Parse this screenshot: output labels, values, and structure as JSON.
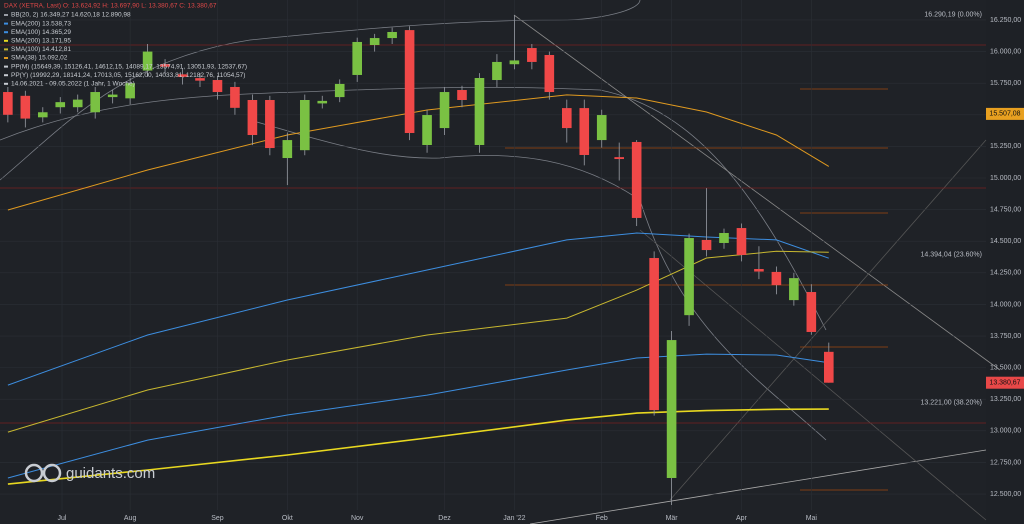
{
  "chart_data": {
    "type": "candlestick",
    "title": "DAX (XETRA, Last)  O: 13.624,92  H: 13.697,90  L: 13.380,67  C: 13.380,67",
    "legend_lines": [
      {
        "text": "BB(20, 2)  16.349,27  14.620,18  12.890,98",
        "color": "#9a9ea6"
      },
      {
        "text": "EMA(200)  13.538,73",
        "color": "#3d8ee0"
      },
      {
        "text": "EMA(100)  14.365,29",
        "color": "#3d8ee0"
      },
      {
        "text": "SMA(200)  13.171,95",
        "color": "#e8d820"
      },
      {
        "text": "SMA(100)  14.412,81",
        "color": "#c8b830"
      },
      {
        "text": "SMA(38)  15.092,02",
        "color": "#e09a20"
      },
      {
        "text": "PP(M)  (15649,39, 15126,41, 14612,15, 14089,17, 13574,91, 13051,93, 12537,67)",
        "color": "#c8ccd2"
      },
      {
        "text": "PP(Y)  (19992,29, 18141,24, 17013,05, 15162,00, 14033,81, 12182,76, 11054,57)",
        "color": "#c8ccd2"
      },
      {
        "text": "14.06.2021 - 09.05.2022  (1 Jahr, 1 Woche)",
        "color": "#c8ccd2"
      }
    ],
    "open": [
      15680,
      15650,
      15480,
      15560,
      15560,
      15520,
      15640,
      15630,
      15850,
      15900,
      15820,
      15790,
      15775,
      15720,
      15617,
      15617,
      15158,
      15220,
      15590,
      15640,
      15815,
      16052,
      16107,
      16170,
      15261,
      15395,
      15696,
      15261,
      15775,
      15900,
      16028,
      15973,
      15553,
      15553,
      15300,
      15165,
      15285,
      14367,
      12627,
      13915,
      14510,
      14486,
      14604,
      14280,
      14257,
      14034,
      14098,
      13624.92
    ],
    "high": [
      15720,
      15690,
      15560,
      15640,
      15660,
      15720,
      15700,
      15790,
      16060,
      15940,
      15870,
      15830,
      15810,
      15760,
      15660,
      15650,
      15360,
      15660,
      15650,
      15780,
      16110,
      16140,
      16190,
      16200,
      15540,
      15720,
      15730,
      15830,
      15980,
      16290,
      16060,
      16000,
      15620,
      15620,
      15540,
      15280,
      15300,
      14420,
      13790,
      14560,
      14920,
      14600,
      14640,
      14460,
      14300,
      14250,
      14160,
      13697.9
    ],
    "low": [
      15440,
      15400,
      15440,
      15510,
      15520,
      15470,
      15590,
      15580,
      15800,
      15820,
      15740,
      15720,
      15620,
      15500,
      15260,
      15180,
      14944,
      15180,
      15550,
      15600,
      15760,
      16000,
      16060,
      15300,
      15200,
      15340,
      15560,
      15200,
      15720,
      15860,
      15860,
      15620,
      15280,
      15100,
      15240,
      14980,
      14620,
      13120,
      12413,
      13830,
      14380,
      14440,
      14340,
      14200,
      14080,
      13990,
      13760,
      13380.67
    ],
    "close": [
      15500,
      15470,
      15520,
      15600,
      15620,
      15680,
      15660,
      15750,
      16000,
      15880,
      15800,
      15770,
      15680,
      15555,
      15340,
      15237,
      15300,
      15617,
      15610,
      15744,
      16076,
      16107,
      16155,
      15356,
      15498,
      15680,
      15617,
      15791,
      15918,
      15930,
      15918,
      15680,
      15395,
      15182,
      15498,
      15150,
      14684,
      13164,
      13718,
      14525,
      14430,
      14565,
      14391,
      14260,
      14153,
      14208,
      13782,
      13380.67
    ],
    "up_color": "#7ac143",
    "down_color": "#f04848",
    "lines": [
      {
        "color": "#3d8ee0",
        "x": [
          0,
          8,
          16,
          24,
          32,
          36,
          40,
          44,
          47
        ],
        "values": [
          13362,
          13758,
          14035,
          14272,
          14510,
          14565,
          14533,
          14510,
          14365.29
        ]
      },
      {
        "color": "#3d8ee0",
        "x": [
          0,
          8,
          16,
          24,
          32,
          36,
          40,
          44,
          47
        ],
        "values": [
          12627,
          12927,
          13125,
          13283,
          13481,
          13576,
          13607,
          13600,
          13538.73
        ]
      },
      {
        "color": "#e8d820",
        "x": [
          0,
          8,
          16,
          24,
          32,
          36,
          40,
          44,
          47
        ],
        "values": [
          12579,
          12690,
          12809,
          12943,
          13085,
          13140,
          13160,
          13170,
          13171.95
        ]
      },
      {
        "color": "#c8b830",
        "x": [
          0,
          8,
          16,
          24,
          32,
          36,
          40,
          44,
          47
        ],
        "values": [
          12990,
          13323,
          13560,
          13758,
          13892,
          14113,
          14367,
          14420,
          14412.81
        ]
      },
      {
        "color": "#e09a20",
        "x": [
          0,
          8,
          16,
          24,
          32,
          36,
          40,
          44,
          47
        ],
        "values": [
          14747,
          15063,
          15340,
          15538,
          15657,
          15633,
          15522,
          15340,
          15092.02
        ]
      }
    ],
    "xlim": [
      -0.45,
      56
    ],
    "xticks": [
      {
        "value": 3.1,
        "label": "Jul"
      },
      {
        "value": 7,
        "label": "Aug"
      },
      {
        "value": 12,
        "label": "Sep"
      },
      {
        "value": 16,
        "label": "Okt"
      },
      {
        "value": 20,
        "label": "Nov"
      },
      {
        "value": 25,
        "label": "Dez"
      },
      {
        "value": 29,
        "label": "Jan '22"
      },
      {
        "value": 34,
        "label": "Feb"
      },
      {
        "value": 38,
        "label": "Mär"
      },
      {
        "value": 42,
        "label": "Apr"
      },
      {
        "value": 46,
        "label": "Mai"
      }
    ],
    "ylim": [
      12263,
      16408
    ],
    "yticks": [
      {
        "value": 12500,
        "label": "12.500,00"
      },
      {
        "value": 12750,
        "label": "12.750,00"
      },
      {
        "value": 13000,
        "label": "13.000,00"
      },
      {
        "value": 13250,
        "label": "13.250,00"
      },
      {
        "value": 13500,
        "label": "13.500,00"
      },
      {
        "value": 13750,
        "label": "13.750,00"
      },
      {
        "value": 14000,
        "label": "14.000,00"
      },
      {
        "value": 14250,
        "label": "14.250,00"
      },
      {
        "value": 14500,
        "label": "14.500,00"
      },
      {
        "value": 14750,
        "label": "14.750,00"
      },
      {
        "value": 15000,
        "label": "15.000,00"
      },
      {
        "value": 15250,
        "label": "15.250,00"
      },
      {
        "value": 15500,
        "label": "15.500,00"
      },
      {
        "value": 15750,
        "label": "15.750,00"
      },
      {
        "value": 16000,
        "label": "16.000,00"
      },
      {
        "value": 16250,
        "label": "16.250,00"
      }
    ],
    "fib_levels": [
      {
        "value": 16290.19,
        "label": "16.290,19 (0.00%)"
      },
      {
        "value": 14394.04,
        "label": "14.394,04 (23.60%)"
      },
      {
        "value": 13221.0,
        "label": "13.221,00 (38.20%)"
      }
    ],
    "price_tags": [
      {
        "value": 15507.08,
        "label": "15.507,08",
        "color": "#e8a020"
      },
      {
        "value": 13380.67,
        "label": "13.380,67",
        "color": "#e84848"
      }
    ],
    "watermark": "guidants.com"
  }
}
